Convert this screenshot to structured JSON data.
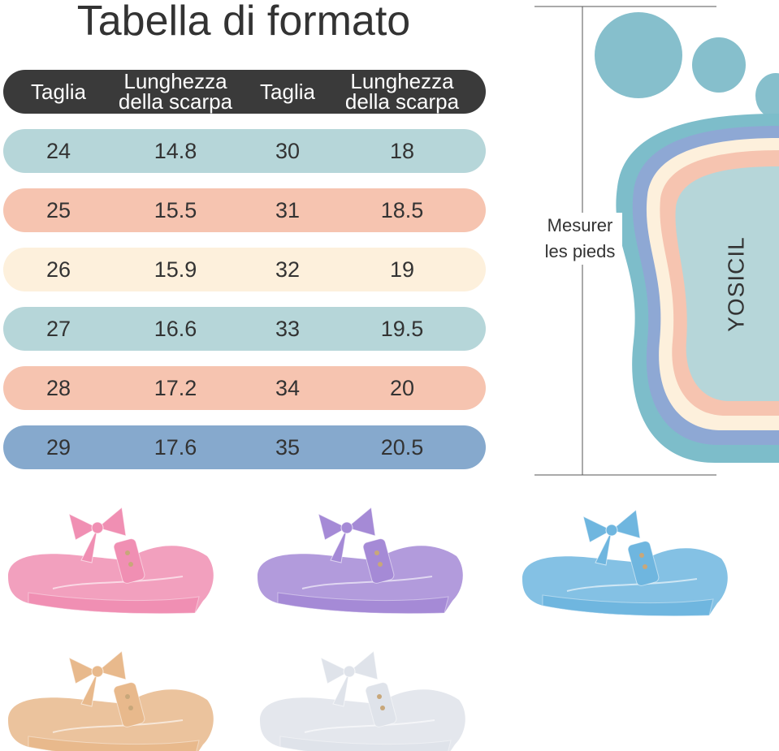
{
  "title": "Tabella di formato",
  "table": {
    "headers": [
      "Taglia",
      "Lunghezza della scarpa",
      "Taglia",
      "Lunghezza della scarpa"
    ],
    "header_color": "#3a3a3a",
    "rows": [
      {
        "cells": [
          "24",
          "14.8",
          "30",
          "18"
        ],
        "color": "#b6d6d9"
      },
      {
        "cells": [
          "25",
          "15.5",
          "31",
          "18.5"
        ],
        "color": "#f6c4b0"
      },
      {
        "cells": [
          "26",
          "15.9",
          "32",
          "19"
        ],
        "color": "#fdf0dc"
      },
      {
        "cells": [
          "27",
          "16.6",
          "33",
          "19.5"
        ],
        "color": "#b6d6d9"
      },
      {
        "cells": [
          "28",
          "17.2",
          "34",
          "20"
        ],
        "color": "#f6c4b0"
      },
      {
        "cells": [
          "29",
          "17.6",
          "35",
          "20.5"
        ],
        "color": "#86a9cd"
      }
    ]
  },
  "foot_diagram": {
    "measure_label": "Mesurer les pieds",
    "brand": "YOSICIL"
  },
  "shoes": [
    {
      "color_name": "pink",
      "color": "#f08fb3"
    },
    {
      "color_name": "purple",
      "color": "#a58ad6"
    },
    {
      "color_name": "blue",
      "color": "#6fb6df"
    },
    {
      "color_name": "gold",
      "color": "#e8b98c"
    },
    {
      "color_name": "white",
      "color": "#dfe3ea"
    }
  ]
}
